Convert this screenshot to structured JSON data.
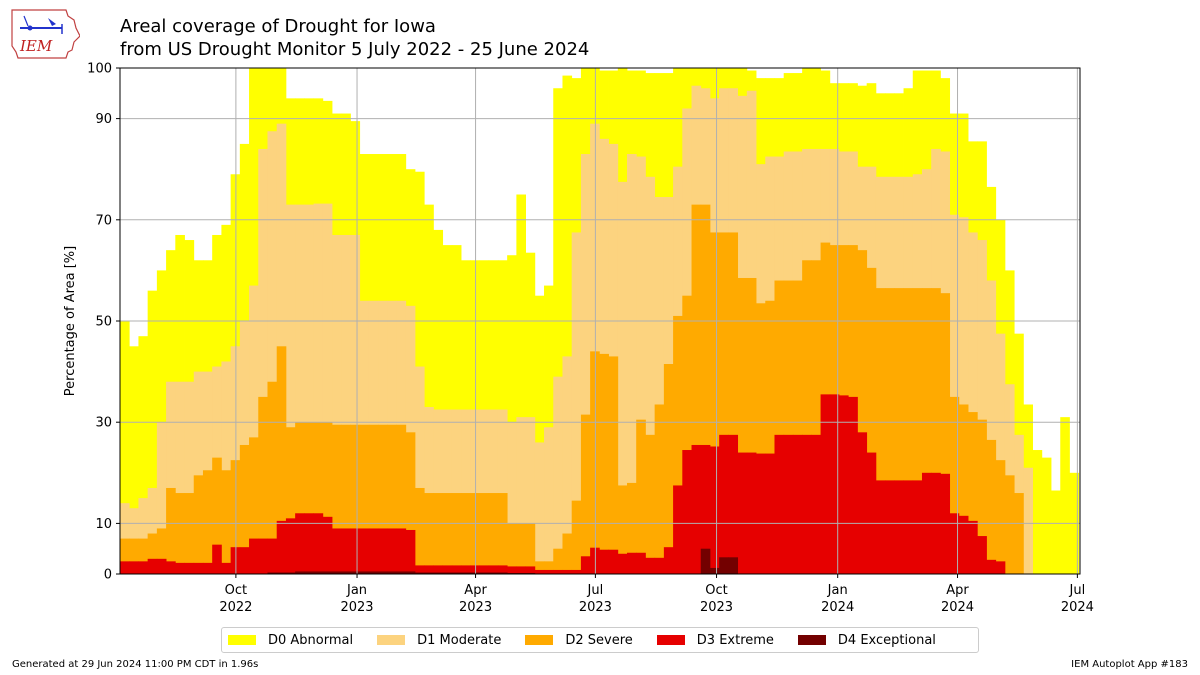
{
  "header": {
    "title_line1": "Areal coverage of Drought for Iowa",
    "title_line2": "from US Drought Monitor 5 July 2022 - 25 June 2024",
    "logo_text": "IEM"
  },
  "footer": {
    "left": "Generated at 29 Jun 2024 11:00 PM CDT in 1.96s",
    "right": "IEM Autoplot App #183"
  },
  "colors": {
    "D0": "#ffff00",
    "D1": "#fcd37f",
    "D2": "#ffaa00",
    "D3": "#e60000",
    "D4": "#730000",
    "grid": "#b0b0b0"
  },
  "chart_data": {
    "type": "area",
    "stacked": true,
    "ylabel": "Percentage of Area [%]",
    "ylim": [
      0,
      100
    ],
    "yticks": [
      0,
      10,
      30,
      50,
      70,
      90,
      100
    ],
    "xlim": [
      "2022-07-05",
      "2024-07-03"
    ],
    "xticks": [
      {
        "date": "2022-10-01",
        "line1": "Oct",
        "line2": "2022"
      },
      {
        "date": "2023-01-01",
        "line1": "Jan",
        "line2": "2023"
      },
      {
        "date": "2023-04-01",
        "line1": "Apr",
        "line2": "2023"
      },
      {
        "date": "2023-07-01",
        "line1": "Jul",
        "line2": "2023"
      },
      {
        "date": "2023-10-01",
        "line1": "Oct",
        "line2": "2023"
      },
      {
        "date": "2024-01-01",
        "line1": "Jan",
        "line2": "2024"
      },
      {
        "date": "2024-04-01",
        "line1": "Apr",
        "line2": "2024"
      },
      {
        "date": "2024-07-01",
        "line1": "Jul",
        "line2": "2024"
      }
    ],
    "grid": true,
    "legend_position": "bottom",
    "series": [
      {
        "name": "D0 Abnormal",
        "key": "D0"
      },
      {
        "name": "D1 Moderate",
        "key": "D1"
      },
      {
        "name": "D2 Severe",
        "key": "D2"
      },
      {
        "name": "D3 Extreme",
        "key": "D3"
      },
      {
        "name": "D4 Exceptional",
        "key": "D4"
      }
    ],
    "weeks": [
      {
        "date": "2022-07-05",
        "D0": 50,
        "D1": 14,
        "D2": 7,
        "D3": 2.5,
        "D4": 0
      },
      {
        "date": "2022-07-12",
        "D0": 45,
        "D1": 13,
        "D2": 7,
        "D3": 2.5,
        "D4": 0
      },
      {
        "date": "2022-07-19",
        "D0": 47,
        "D1": 15,
        "D2": 7,
        "D3": 2.5,
        "D4": 0
      },
      {
        "date": "2022-07-26",
        "D0": 56,
        "D1": 17,
        "D2": 8,
        "D3": 3,
        "D4": 0
      },
      {
        "date": "2022-08-02",
        "D0": 60,
        "D1": 30,
        "D2": 9,
        "D3": 3,
        "D4": 0
      },
      {
        "date": "2022-08-09",
        "D0": 64,
        "D1": 38,
        "D2": 17,
        "D3": 2.5,
        "D4": 0
      },
      {
        "date": "2022-08-16",
        "D0": 67,
        "D1": 38,
        "D2": 16,
        "D3": 2.2,
        "D4": 0
      },
      {
        "date": "2022-08-23",
        "D0": 66,
        "D1": 38,
        "D2": 16,
        "D3": 2.2,
        "D4": 0
      },
      {
        "date": "2022-08-30",
        "D0": 62,
        "D1": 40,
        "D2": 19.5,
        "D3": 2.2,
        "D4": 0
      },
      {
        "date": "2022-09-06",
        "D0": 62,
        "D1": 40,
        "D2": 20.5,
        "D3": 2.2,
        "D4": 0
      },
      {
        "date": "2022-09-13",
        "D0": 67,
        "D1": 41,
        "D2": 23,
        "D3": 5.8,
        "D4": 0
      },
      {
        "date": "2022-09-20",
        "D0": 69,
        "D1": 42,
        "D2": 20.5,
        "D3": 2.2,
        "D4": 0
      },
      {
        "date": "2022-09-27",
        "D0": 79,
        "D1": 45,
        "D2": 22.5,
        "D3": 5.3,
        "D4": 0
      },
      {
        "date": "2022-10-04",
        "D0": 85,
        "D1": 50,
        "D2": 25.5,
        "D3": 5.3,
        "D4": 0
      },
      {
        "date": "2022-10-11",
        "D0": 100,
        "D1": 57,
        "D2": 27,
        "D3": 7,
        "D4": 0
      },
      {
        "date": "2022-10-18",
        "D0": 100,
        "D1": 84,
        "D2": 35,
        "D3": 7,
        "D4": 0
      },
      {
        "date": "2022-10-25",
        "D0": 100,
        "D1": 87.5,
        "D2": 38,
        "D3": 7,
        "D4": 0.3
      },
      {
        "date": "2022-11-01",
        "D0": 100,
        "D1": 89,
        "D2": 45,
        "D3": 10.5,
        "D4": 0.3
      },
      {
        "date": "2022-11-08",
        "D0": 94,
        "D1": 73,
        "D2": 29,
        "D3": 11,
        "D4": 0.3
      },
      {
        "date": "2022-11-15",
        "D0": 94,
        "D1": 73,
        "D2": 30,
        "D3": 12,
        "D4": 0.5
      },
      {
        "date": "2022-11-22",
        "D0": 94,
        "D1": 73,
        "D2": 30,
        "D3": 12,
        "D4": 0.5
      },
      {
        "date": "2022-11-29",
        "D0": 94,
        "D1": 73.2,
        "D2": 30,
        "D3": 12,
        "D4": 0.5
      },
      {
        "date": "2022-12-06",
        "D0": 93.5,
        "D1": 73.2,
        "D2": 30,
        "D3": 11.3,
        "D4": 0.5
      },
      {
        "date": "2022-12-13",
        "D0": 91,
        "D1": 67,
        "D2": 29.5,
        "D3": 9,
        "D4": 0.5
      },
      {
        "date": "2022-12-20",
        "D0": 91,
        "D1": 67,
        "D2": 29.5,
        "D3": 9,
        "D4": 0.5
      },
      {
        "date": "2022-12-27",
        "D0": 89.5,
        "D1": 67,
        "D2": 29.5,
        "D3": 9,
        "D4": 0.5
      },
      {
        "date": "2023-01-03",
        "D0": 83,
        "D1": 54,
        "D2": 29.5,
        "D3": 9,
        "D4": 0.5
      },
      {
        "date": "2023-01-10",
        "D0": 83,
        "D1": 54,
        "D2": 29.5,
        "D3": 9,
        "D4": 0.5
      },
      {
        "date": "2023-01-17",
        "D0": 83,
        "D1": 54,
        "D2": 29.5,
        "D3": 9,
        "D4": 0.5
      },
      {
        "date": "2023-01-24",
        "D0": 83,
        "D1": 54,
        "D2": 29.5,
        "D3": 9,
        "D4": 0.5
      },
      {
        "date": "2023-01-31",
        "D0": 83,
        "D1": 54,
        "D2": 29.5,
        "D3": 9,
        "D4": 0.5
      },
      {
        "date": "2023-02-07",
        "D0": 80,
        "D1": 53,
        "D2": 28,
        "D3": 8.7,
        "D4": 0.5
      },
      {
        "date": "2023-02-14",
        "D0": 79.5,
        "D1": 41,
        "D2": 17,
        "D3": 1.7,
        "D4": 0.3
      },
      {
        "date": "2023-02-21",
        "D0": 73,
        "D1": 33,
        "D2": 16,
        "D3": 1.7,
        "D4": 0.3
      },
      {
        "date": "2023-02-28",
        "D0": 68,
        "D1": 32.5,
        "D2": 16,
        "D3": 1.7,
        "D4": 0.3
      },
      {
        "date": "2023-03-07",
        "D0": 65,
        "D1": 32.5,
        "D2": 16,
        "D3": 1.7,
        "D4": 0.3
      },
      {
        "date": "2023-03-14",
        "D0": 65,
        "D1": 32.5,
        "D2": 16,
        "D3": 1.7,
        "D4": 0.3
      },
      {
        "date": "2023-03-21",
        "D0": 62,
        "D1": 32.5,
        "D2": 16,
        "D3": 1.7,
        "D4": 0.3
      },
      {
        "date": "2023-03-28",
        "D0": 62,
        "D1": 32.5,
        "D2": 16,
        "D3": 1.7,
        "D4": 0.3
      },
      {
        "date": "2023-04-04",
        "D0": 62,
        "D1": 32.5,
        "D2": 16,
        "D3": 1.7,
        "D4": 0.3
      },
      {
        "date": "2023-04-11",
        "D0": 62,
        "D1": 32.5,
        "D2": 16,
        "D3": 1.7,
        "D4": 0.3
      },
      {
        "date": "2023-04-18",
        "D0": 62,
        "D1": 32.5,
        "D2": 16,
        "D3": 1.7,
        "D4": 0.3
      },
      {
        "date": "2023-04-25",
        "D0": 63,
        "D1": 30,
        "D2": 10,
        "D3": 1.5,
        "D4": 0.2
      },
      {
        "date": "2023-05-02",
        "D0": 75,
        "D1": 31,
        "D2": 10,
        "D3": 1.5,
        "D4": 0.2
      },
      {
        "date": "2023-05-09",
        "D0": 63.5,
        "D1": 31,
        "D2": 10,
        "D3": 1.5,
        "D4": 0.2
      },
      {
        "date": "2023-05-16",
        "D0": 55,
        "D1": 26,
        "D2": 2.5,
        "D3": 0.8,
        "D4": 0
      },
      {
        "date": "2023-05-23",
        "D0": 57,
        "D1": 29,
        "D2": 2.5,
        "D3": 0.8,
        "D4": 0
      },
      {
        "date": "2023-05-30",
        "D0": 96,
        "D1": 39,
        "D2": 5,
        "D3": 0.8,
        "D4": 0
      },
      {
        "date": "2023-06-06",
        "D0": 98.5,
        "D1": 43,
        "D2": 8,
        "D3": 0.8,
        "D4": 0
      },
      {
        "date": "2023-06-13",
        "D0": 98,
        "D1": 67.5,
        "D2": 14.5,
        "D3": 0.8,
        "D4": 0
      },
      {
        "date": "2023-06-20",
        "D0": 100,
        "D1": 83,
        "D2": 31.5,
        "D3": 3.5,
        "D4": 0
      },
      {
        "date": "2023-06-27",
        "D0": 100,
        "D1": 89,
        "D2": 44,
        "D3": 5.2,
        "D4": 0
      },
      {
        "date": "2023-07-04",
        "D0": 99.5,
        "D1": 86,
        "D2": 43.5,
        "D3": 4.8,
        "D4": 0
      },
      {
        "date": "2023-07-11",
        "D0": 99.5,
        "D1": 85,
        "D2": 43,
        "D3": 4.8,
        "D4": 0
      },
      {
        "date": "2023-07-18",
        "D0": 100,
        "D1": 77.5,
        "D2": 17.5,
        "D3": 4,
        "D4": 0
      },
      {
        "date": "2023-07-25",
        "D0": 99.5,
        "D1": 83,
        "D2": 18,
        "D3": 4.2,
        "D4": 0
      },
      {
        "date": "2023-08-01",
        "D0": 99.5,
        "D1": 82.5,
        "D2": 30.5,
        "D3": 4.2,
        "D4": 0
      },
      {
        "date": "2023-08-08",
        "D0": 99,
        "D1": 78.5,
        "D2": 27.5,
        "D3": 3.2,
        "D4": 0
      },
      {
        "date": "2023-08-15",
        "D0": 99,
        "D1": 74.5,
        "D2": 33.5,
        "D3": 3.2,
        "D4": 0
      },
      {
        "date": "2023-08-22",
        "D0": 99,
        "D1": 74.5,
        "D2": 41.5,
        "D3": 5.3,
        "D4": 0
      },
      {
        "date": "2023-08-29",
        "D0": 100,
        "D1": 80.5,
        "D2": 51,
        "D3": 17.5,
        "D4": 0
      },
      {
        "date": "2023-09-05",
        "D0": 100,
        "D1": 92,
        "D2": 55,
        "D3": 24.5,
        "D4": 0
      },
      {
        "date": "2023-09-12",
        "D0": 100,
        "D1": 96.5,
        "D2": 73,
        "D3": 25.5,
        "D4": 0
      },
      {
        "date": "2023-09-19",
        "D0": 100,
        "D1": 96,
        "D2": 73,
        "D3": 25.5,
        "D4": 5
      },
      {
        "date": "2023-09-26",
        "D0": 100,
        "D1": 94,
        "D2": 67.5,
        "D3": 25.2,
        "D4": 1.2
      },
      {
        "date": "2023-10-03",
        "D0": 100,
        "D1": 96,
        "D2": 67.5,
        "D3": 27.5,
        "D4": 3.3
      },
      {
        "date": "2023-10-10",
        "D0": 100,
        "D1": 96,
        "D2": 67.5,
        "D3": 27.5,
        "D4": 3.3
      },
      {
        "date": "2023-10-17",
        "D0": 100,
        "D1": 94.5,
        "D2": 58.5,
        "D3": 24,
        "D4": 0
      },
      {
        "date": "2023-10-24",
        "D0": 99.5,
        "D1": 95.5,
        "D2": 58.5,
        "D3": 24,
        "D4": 0
      },
      {
        "date": "2023-10-31",
        "D0": 98,
        "D1": 81,
        "D2": 53.5,
        "D3": 23.8,
        "D4": 0
      },
      {
        "date": "2023-11-07",
        "D0": 98,
        "D1": 82.5,
        "D2": 54,
        "D3": 23.8,
        "D4": 0
      },
      {
        "date": "2023-11-14",
        "D0": 98,
        "D1": 82.5,
        "D2": 58,
        "D3": 27.5,
        "D4": 0
      },
      {
        "date": "2023-11-21",
        "D0": 99,
        "D1": 83.5,
        "D2": 58,
        "D3": 27.5,
        "D4": 0
      },
      {
        "date": "2023-11-28",
        "D0": 99,
        "D1": 83.5,
        "D2": 58,
        "D3": 27.5,
        "D4": 0
      },
      {
        "date": "2023-12-05",
        "D0": 100,
        "D1": 84,
        "D2": 62,
        "D3": 27.5,
        "D4": 0
      },
      {
        "date": "2023-12-12",
        "D0": 100,
        "D1": 84,
        "D2": 62,
        "D3": 27.5,
        "D4": 0
      },
      {
        "date": "2023-12-19",
        "D0": 99.5,
        "D1": 84,
        "D2": 65.5,
        "D3": 35.5,
        "D4": 0
      },
      {
        "date": "2023-12-26",
        "D0": 97,
        "D1": 84,
        "D2": 65,
        "D3": 35.5,
        "D4": 0
      },
      {
        "date": "2024-01-02",
        "D0": 97,
        "D1": 83.5,
        "D2": 65,
        "D3": 35.3,
        "D4": 0
      },
      {
        "date": "2024-01-09",
        "D0": 97,
        "D1": 83.5,
        "D2": 65,
        "D3": 35,
        "D4": 0
      },
      {
        "date": "2024-01-16",
        "D0": 96.5,
        "D1": 80.5,
        "D2": 64,
        "D3": 28,
        "D4": 0
      },
      {
        "date": "2024-01-23",
        "D0": 97,
        "D1": 80.5,
        "D2": 60.5,
        "D3": 24,
        "D4": 0
      },
      {
        "date": "2024-01-30",
        "D0": 95,
        "D1": 78.5,
        "D2": 56.5,
        "D3": 18.5,
        "D4": 0
      },
      {
        "date": "2024-02-06",
        "D0": 95,
        "D1": 78.5,
        "D2": 56.5,
        "D3": 18.5,
        "D4": 0
      },
      {
        "date": "2024-02-13",
        "D0": 95,
        "D1": 78.5,
        "D2": 56.5,
        "D3": 18.5,
        "D4": 0
      },
      {
        "date": "2024-02-20",
        "D0": 96,
        "D1": 78.5,
        "D2": 56.5,
        "D3": 18.5,
        "D4": 0
      },
      {
        "date": "2024-02-27",
        "D0": 99.5,
        "D1": 79,
        "D2": 56.5,
        "D3": 18.5,
        "D4": 0
      },
      {
        "date": "2024-03-05",
        "D0": 99.5,
        "D1": 80,
        "D2": 56.5,
        "D3": 20,
        "D4": 0
      },
      {
        "date": "2024-03-12",
        "D0": 99.5,
        "D1": 84,
        "D2": 56.5,
        "D3": 20,
        "D4": 0
      },
      {
        "date": "2024-03-19",
        "D0": 98,
        "D1": 83.5,
        "D2": 55.5,
        "D3": 19.8,
        "D4": 0
      },
      {
        "date": "2024-03-26",
        "D0": 91,
        "D1": 71,
        "D2": 35,
        "D3": 12,
        "D4": 0
      },
      {
        "date": "2024-04-02",
        "D0": 91,
        "D1": 70.5,
        "D2": 33.5,
        "D3": 11.5,
        "D4": 0
      },
      {
        "date": "2024-04-09",
        "D0": 85.5,
        "D1": 67.5,
        "D2": 32,
        "D3": 10.5,
        "D4": 0
      },
      {
        "date": "2024-04-16",
        "D0": 85.5,
        "D1": 66,
        "D2": 30.5,
        "D3": 7.5,
        "D4": 0
      },
      {
        "date": "2024-04-23",
        "D0": 76.5,
        "D1": 58,
        "D2": 26.5,
        "D3": 2.8,
        "D4": 0
      },
      {
        "date": "2024-04-30",
        "D0": 70,
        "D1": 47.5,
        "D2": 22.5,
        "D3": 2.5,
        "D4": 0
      },
      {
        "date": "2024-05-07",
        "D0": 60,
        "D1": 37.5,
        "D2": 19.5,
        "D3": 0,
        "D4": 0
      },
      {
        "date": "2024-05-14",
        "D0": 47.5,
        "D1": 27.5,
        "D2": 16,
        "D3": 0,
        "D4": 0
      },
      {
        "date": "2024-05-21",
        "D0": 33.5,
        "D1": 21,
        "D2": 0,
        "D3": 0,
        "D4": 0
      },
      {
        "date": "2024-05-28",
        "D0": 24.5,
        "D1": 0,
        "D2": 0,
        "D3": 0,
        "D4": 0
      },
      {
        "date": "2024-06-04",
        "D0": 23,
        "D1": 0,
        "D2": 0,
        "D3": 0,
        "D4": 0
      },
      {
        "date": "2024-06-11",
        "D0": 16.5,
        "D1": 0,
        "D2": 0,
        "D3": 0,
        "D4": 0
      },
      {
        "date": "2024-06-18",
        "D0": 31,
        "D1": 0,
        "D2": 0,
        "D3": 0,
        "D4": 0
      },
      {
        "date": "2024-06-25",
        "D0": 20,
        "D1": 0,
        "D2": 0,
        "D3": 0,
        "D4": 0
      }
    ]
  }
}
